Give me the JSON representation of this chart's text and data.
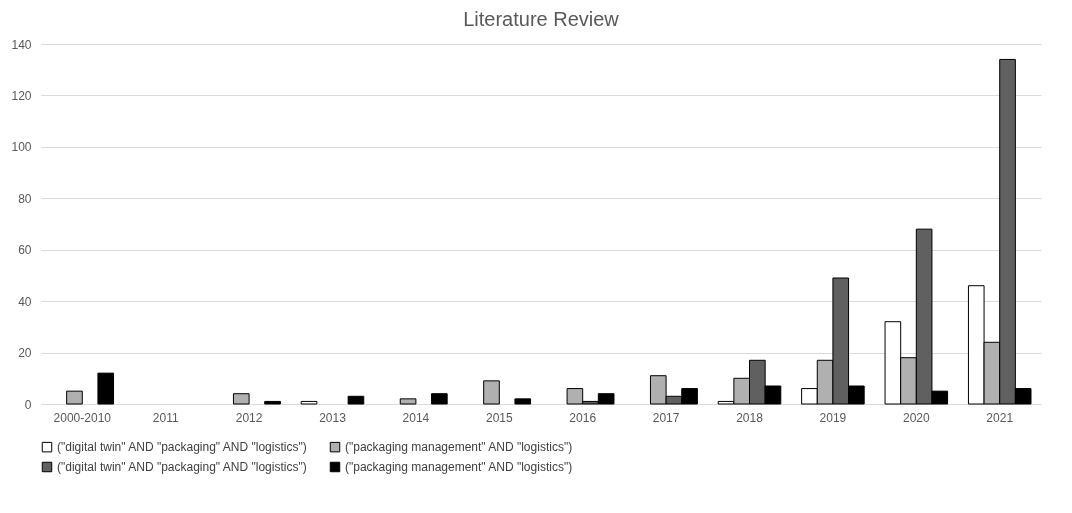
{
  "chart_data": {
    "type": "bar",
    "title": "Literature Review",
    "categories": [
      "2000-2010",
      "2011",
      "2012",
      "2013",
      "2014",
      "2015",
      "2016",
      "2017",
      "2018",
      "2019",
      "2020",
      "2021"
    ],
    "series": [
      {
        "name": "(\"digital twin\" AND \"packaging\" AND \"logistics\")",
        "color": "#ffffff",
        "values": [
          0,
          0,
          0,
          1,
          0,
          0,
          0,
          0,
          1,
          6,
          32,
          46
        ]
      },
      {
        "name": "(\"packaging management\" AND \"logistics\")",
        "color": "#b0b0b0",
        "values": [
          5,
          0,
          4,
          0,
          2,
          9,
          6,
          11,
          10,
          17,
          18,
          24
        ]
      },
      {
        "name": "(\"digital twin\" AND \"packaging\" AND \"logistics\")",
        "color": "#606060",
        "values": [
          0,
          0,
          0,
          0,
          0,
          0,
          1,
          3,
          17,
          49,
          68,
          134
        ]
      },
      {
        "name": "(\"packaging management\" AND \"logistics\")",
        "color": "#000000",
        "values": [
          12,
          0,
          1,
          3,
          4,
          2,
          4,
          6,
          7,
          7,
          5,
          6
        ]
      }
    ],
    "ylim": [
      0,
      140
    ],
    "yticks": [
      0,
      20,
      40,
      60,
      80,
      100,
      120,
      140
    ],
    "grid": "y",
    "legend": "bottom"
  }
}
